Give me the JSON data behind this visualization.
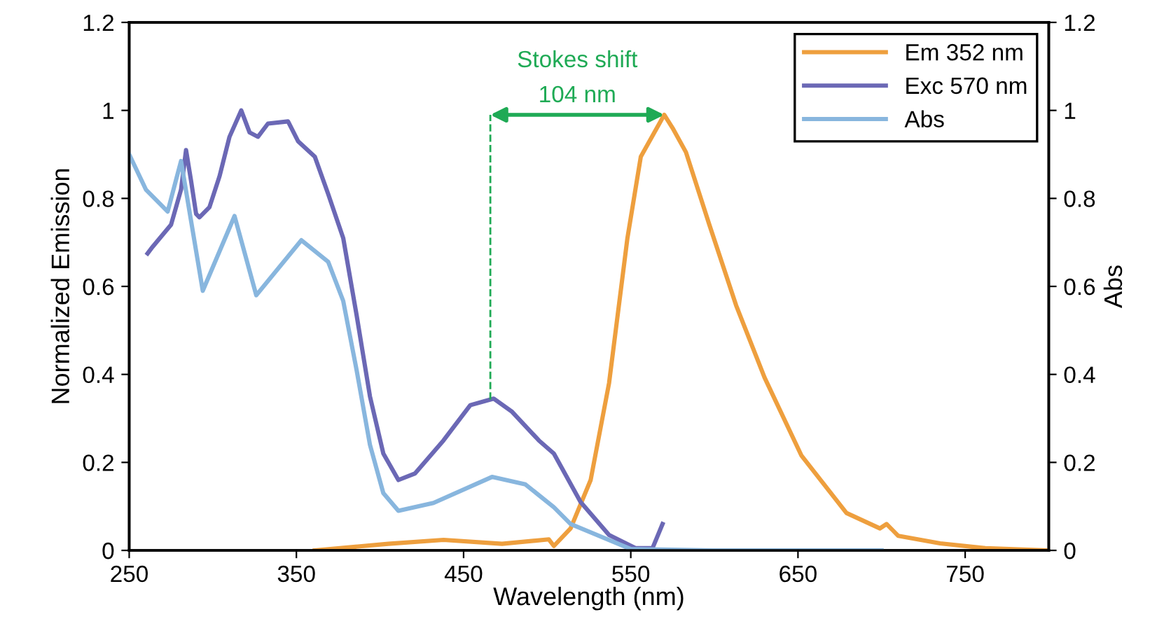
{
  "chart_data": {
    "type": "line",
    "xlabel": "Wavelength (nm)",
    "ylabel": "Normalized Emission",
    "y2label": "Abs",
    "xlim": [
      250,
      800
    ],
    "xticks": [
      250,
      350,
      450,
      550,
      650,
      750
    ],
    "ylim": [
      0,
      1.2
    ],
    "yticks": [
      0,
      0.2,
      0.4,
      0.6,
      0.8,
      1,
      1.2
    ],
    "y2lim": [
      0,
      1.2
    ],
    "y2ticks": [
      0,
      0.2,
      0.4,
      0.6,
      0.8,
      1,
      1.2
    ],
    "grid": false,
    "legend": "top right",
    "marker": "none",
    "line_style": "solid",
    "series": [
      {
        "name": "Em 352 nm",
        "color": "#ee9f3e",
        "x": [
          361,
          405,
          438,
          473,
          501,
          504,
          514,
          526,
          537,
          548,
          556,
          570,
          575,
          583,
          597,
          613,
          630,
          652,
          679,
          699,
          703,
          710,
          735,
          762,
          798
        ],
        "values": [
          0,
          0.015,
          0.024,
          0.015,
          0.025,
          0.01,
          0.05,
          0.16,
          0.38,
          0.71,
          0.895,
          0.99,
          0.96,
          0.905,
          0.74,
          0.557,
          0.393,
          0.216,
          0.085,
          0.05,
          0.06,
          0.033,
          0.016,
          0.005,
          0
        ]
      },
      {
        "name": "Exc 570 nm",
        "color": "#6b68b5",
        "x": [
          261,
          264,
          275,
          281,
          284,
          287,
          290,
          292,
          298,
          304,
          310,
          317,
          322,
          327,
          333,
          345,
          351,
          361,
          369,
          378,
          386,
          394,
          402,
          411,
          421,
          438,
          454,
          468,
          479,
          495,
          504,
          520,
          537,
          553,
          563,
          569
        ],
        "values": [
          0.675,
          0.69,
          0.74,
          0.82,
          0.91,
          0.84,
          0.765,
          0.757,
          0.78,
          0.85,
          0.94,
          1.0,
          0.95,
          0.94,
          0.97,
          0.975,
          0.93,
          0.895,
          0.81,
          0.71,
          0.535,
          0.35,
          0.22,
          0.16,
          0.175,
          0.25,
          0.33,
          0.345,
          0.315,
          0.25,
          0.22,
          0.11,
          0.035,
          0.005,
          0.005,
          0.06
        ]
      },
      {
        "name": "Abs",
        "color": "#88b6de",
        "axis": "y2",
        "x": [
          250,
          260,
          273,
          281,
          294,
          313,
          326,
          353,
          369,
          378,
          386,
          394,
          402,
          411,
          432,
          467,
          487,
          504,
          514,
          550,
          600,
          700
        ],
        "values": [
          0.9,
          0.82,
          0.77,
          0.885,
          0.59,
          0.76,
          0.58,
          0.705,
          0.656,
          0.567,
          0.41,
          0.24,
          0.13,
          0.09,
          0.108,
          0.167,
          0.15,
          0.098,
          0.06,
          0.003,
          0,
          0
        ]
      }
    ],
    "ref_lines": [
      {
        "axis": "x",
        "value": 466,
        "color": "#1faa55",
        "line_style": "dashed"
      }
    ],
    "annotations": [
      "Stokes shift",
      "104 nm"
    ]
  }
}
